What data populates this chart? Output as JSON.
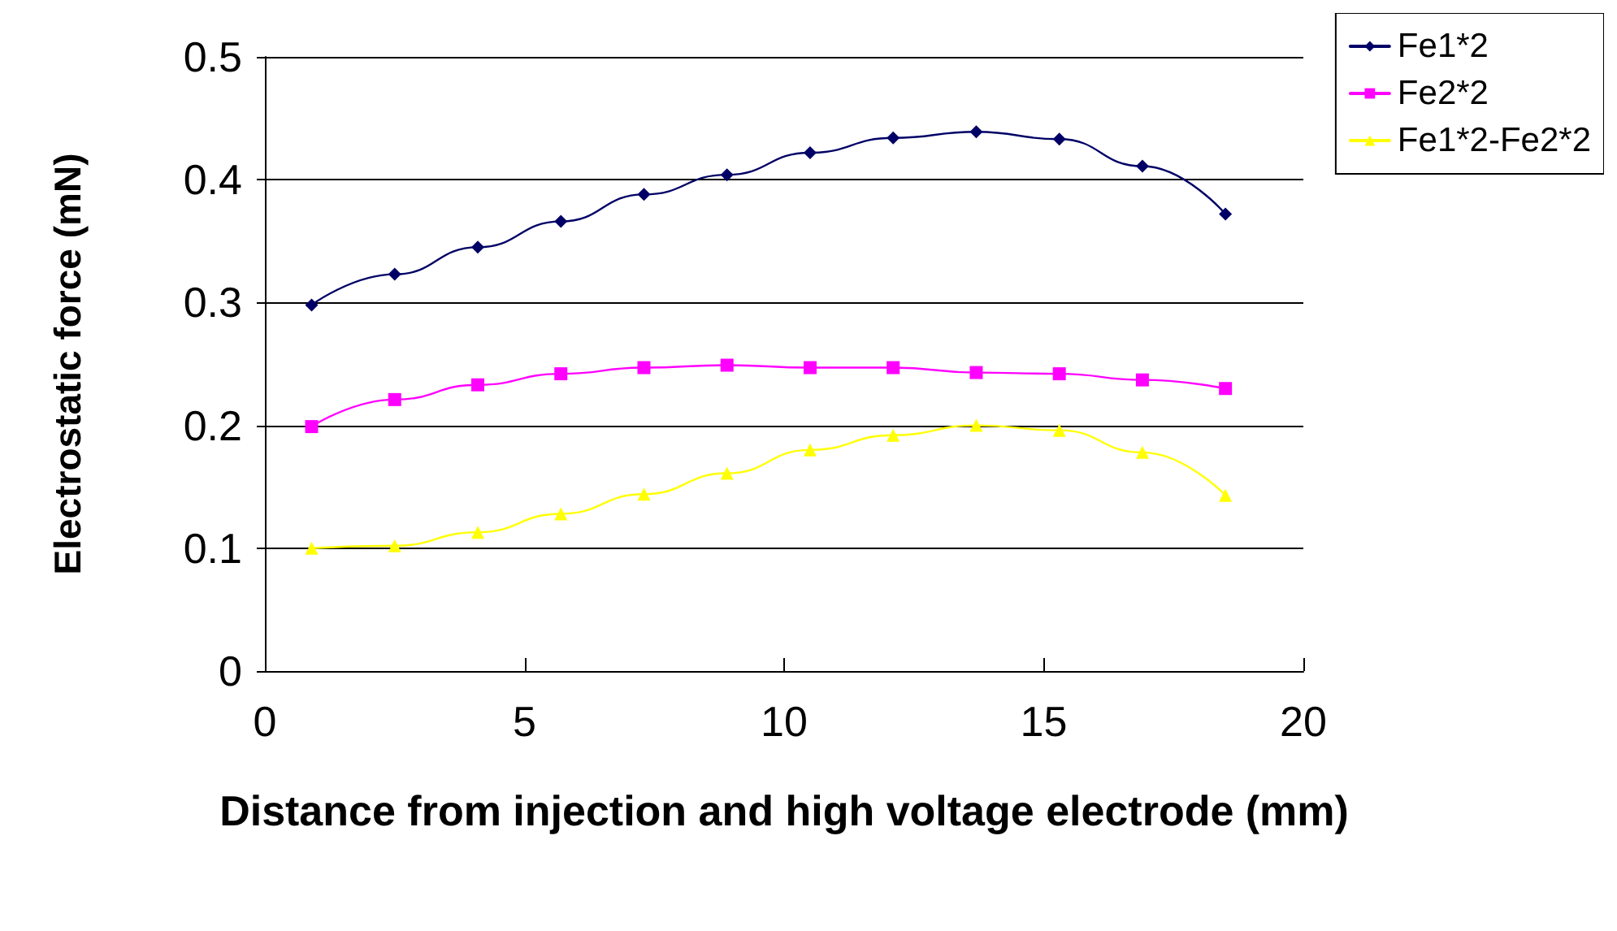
{
  "chart_data": {
    "type": "line",
    "xlabel": "Distance from injection and high voltage electrode (mm)",
    "ylabel": "Electrostatic force (mN)",
    "x": [
      0.9,
      2.5,
      4.1,
      5.7,
      7.3,
      8.9,
      10.5,
      12.1,
      13.7,
      15.3,
      16.9,
      18.5
    ],
    "series": [
      {
        "name": "Fe1*2",
        "color": "#000066",
        "marker": "diamond",
        "values": [
          0.298,
          0.323,
          0.345,
          0.366,
          0.388,
          0.404,
          0.422,
          0.434,
          0.439,
          0.433,
          0.411,
          0.372
        ]
      },
      {
        "name": "Fe2*2",
        "color": "#ff00ff",
        "marker": "square",
        "values": [
          0.199,
          0.221,
          0.233,
          0.242,
          0.247,
          0.249,
          0.247,
          0.247,
          0.243,
          0.242,
          0.237,
          0.23
        ]
      },
      {
        "name": "Fe1*2-Fe2*2",
        "color": "#ffff00",
        "marker": "triangle",
        "values": [
          0.1,
          0.102,
          0.113,
          0.128,
          0.144,
          0.161,
          0.18,
          0.192,
          0.2,
          0.196,
          0.178,
          0.143
        ]
      }
    ],
    "xlim": [
      0,
      20
    ],
    "xticks": [
      0,
      5,
      10,
      15,
      20
    ],
    "ylim": [
      0,
      0.5
    ],
    "yticks": [
      0,
      0.1,
      0.2,
      0.3,
      0.4,
      0.5
    ],
    "grid": "y",
    "legend": "top right"
  }
}
